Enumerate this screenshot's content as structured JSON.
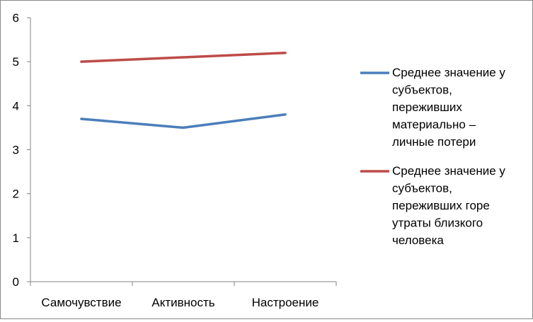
{
  "chart_data": {
    "type": "line",
    "categories": [
      "Самочувствие",
      "Активность",
      "Настроение"
    ],
    "series": [
      {
        "name": "Среднее значение у субъектов, переживших материально – личные потери",
        "name_lines": [
          "Среднее значение у",
          "субъектов,",
          "переживших",
          "материально –",
          "личные потери"
        ],
        "values": [
          3.7,
          3.5,
          3.8
        ],
        "color": "#4a7ebb"
      },
      {
        "name": "Среднее значение у субъектов, переживших горе утраты близкого человека",
        "name_lines": [
          "Среднее значение у",
          "субъектов,",
          "переживших горе",
          "утраты близкого",
          "человека"
        ],
        "values": [
          5.0,
          5.1,
          5.2
        ],
        "color": "#be4b48"
      }
    ],
    "yticks": [
      "0",
      "1",
      "2",
      "3",
      "4",
      "5",
      "6"
    ],
    "ylim": [
      0,
      6
    ],
    "grid": false,
    "legend": "right",
    "title": "",
    "xlabel": "",
    "ylabel": ""
  }
}
